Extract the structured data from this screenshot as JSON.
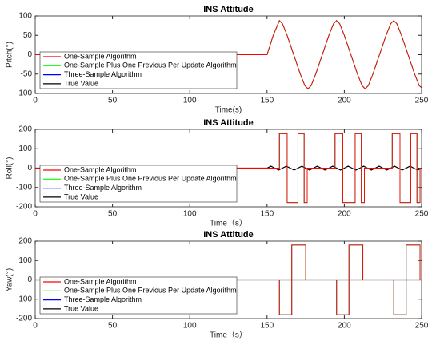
{
  "chart_data": [
    {
      "type": "line",
      "title": "INS Attitude",
      "xlabel": "Time(s)",
      "ylabel": "Pitch(°)",
      "xlim": [
        0,
        250
      ],
      "xticks": [
        0,
        50,
        100,
        150,
        200,
        250
      ],
      "ylim": [
        -100,
        100
      ],
      "yticks": [
        -100,
        -50,
        0,
        50,
        100
      ],
      "legend": "lower left",
      "x": [
        0,
        150,
        154,
        158,
        160,
        163,
        167.25,
        171.5,
        174.5,
        176.5,
        178.5,
        181.5,
        185.75,
        190,
        193,
        195,
        197,
        200,
        204.25,
        208.5,
        211.5,
        213.5,
        215.5,
        218.5,
        222.75,
        227,
        230,
        232,
        234,
        237,
        241.25,
        245.5,
        248.5,
        250
      ],
      "series": [
        {
          "name": "One-Sample Algorithm",
          "color": "#ff0000",
          "values": [
            0,
            0,
            50,
            88,
            80,
            50,
            0,
            -50,
            -80,
            -88,
            -80,
            -50,
            0,
            50,
            80,
            88,
            80,
            50,
            0,
            -50,
            -80,
            -88,
            -80,
            -50,
            0,
            50,
            80,
            88,
            80,
            50,
            0,
            -50,
            -80,
            -85
          ]
        },
        {
          "name": "One-Sample Plus One Previous Per Update Algorithm",
          "color": "#00ff00",
          "values": [
            0,
            0,
            50,
            88,
            80,
            50,
            0,
            -50,
            -80,
            -88,
            -80,
            -50,
            0,
            50,
            80,
            88,
            80,
            50,
            0,
            -50,
            -80,
            -88,
            -80,
            -50,
            0,
            50,
            80,
            88,
            80,
            50,
            0,
            -50,
            -80,
            -85
          ]
        },
        {
          "name": "Three-Sample Algorithm",
          "color": "#0000ff",
          "values": [
            0,
            0,
            50,
            88,
            80,
            50,
            0,
            -50,
            -80,
            -88,
            -80,
            -50,
            0,
            50,
            80,
            88,
            80,
            50,
            0,
            -50,
            -80,
            -88,
            -80,
            -50,
            0,
            50,
            80,
            88,
            80,
            50,
            0,
            -50,
            -80,
            -85
          ]
        },
        {
          "name": "True Value",
          "color": "#000000",
          "values": [
            0,
            0,
            50,
            88,
            80,
            50,
            0,
            -50,
            -80,
            -88,
            -80,
            -50,
            0,
            50,
            80,
            88,
            80,
            50,
            0,
            -50,
            -80,
            -88,
            -80,
            -50,
            0,
            50,
            80,
            88,
            80,
            50,
            0,
            -50,
            -80,
            -85
          ]
        }
      ]
    },
    {
      "type": "line",
      "title": "INS Attitude",
      "xlabel": "Time（s）",
      "ylabel": "Roll(°)",
      "xlim": [
        0,
        250
      ],
      "xticks": [
        0,
        50,
        100,
        150,
        200,
        250
      ],
      "ylim": [
        -200,
        200
      ],
      "yticks": [
        -200,
        -100,
        0,
        100,
        200
      ],
      "legend": "lower left",
      "x": [
        0,
        158,
        158,
        163,
        163,
        170,
        170,
        174,
        174,
        176,
        176,
        194,
        194,
        199,
        199,
        207,
        207,
        211,
        211,
        213,
        213,
        231,
        231,
        236,
        236,
        243,
        243,
        247,
        247,
        249,
        249,
        250
      ],
      "series": [
        {
          "name": "One-Sample Algorithm",
          "color": "#ff0000",
          "values": [
            0,
            0,
            178,
            178,
            -178,
            -178,
            178,
            178,
            -178,
            -178,
            0,
            0,
            178,
            178,
            -178,
            -178,
            178,
            178,
            -178,
            -178,
            0,
            0,
            178,
            178,
            -178,
            -178,
            178,
            178,
            -178,
            -178,
            0,
            0
          ]
        },
        {
          "name": "One-Sample Plus One Previous Per Update Algorithm",
          "color": "#00ff00",
          "values": [
            0,
            0,
            178,
            178,
            -178,
            -178,
            178,
            178,
            -178,
            -178,
            0,
            0,
            178,
            178,
            -178,
            -178,
            178,
            178,
            -178,
            -178,
            0,
            0,
            178,
            178,
            -178,
            -178,
            178,
            178,
            -178,
            -178,
            0,
            0
          ]
        },
        {
          "name": "Three-Sample Algorithm",
          "color": "#0000ff",
          "values": [
            0,
            0,
            178,
            178,
            -178,
            -178,
            178,
            178,
            -178,
            -178,
            0,
            0,
            178,
            178,
            -178,
            -178,
            178,
            178,
            -178,
            -178,
            0,
            0,
            178,
            178,
            -178,
            -178,
            178,
            178,
            -178,
            -178,
            0,
            0
          ]
        },
        {
          "name": "True Value",
          "color": "#000000",
          "x": [
            0,
            150,
            152.5,
            155,
            157.5,
            160,
            162.5,
            165,
            167.5,
            170,
            172.5,
            175,
            177.5,
            180,
            182.5,
            185,
            187.5,
            190,
            192.5,
            195,
            197.5,
            200,
            202.5,
            205,
            207.5,
            210,
            212.5,
            215,
            217.5,
            220,
            222.5,
            225,
            227.5,
            230,
            232.5,
            235,
            237.5,
            240,
            242.5,
            245,
            247.5,
            250
          ],
          "values": [
            0,
            0,
            10,
            0,
            -10,
            0,
            10,
            0,
            -10,
            0,
            10,
            0,
            -10,
            0,
            10,
            0,
            -10,
            0,
            10,
            0,
            -10,
            0,
            10,
            0,
            -10,
            0,
            10,
            0,
            -10,
            0,
            10,
            0,
            -10,
            0,
            10,
            0,
            -10,
            0,
            10,
            0,
            -10,
            0
          ]
        }
      ]
    },
    {
      "type": "line",
      "title": "INS Attitude",
      "xlabel": "Time（s）",
      "ylabel": "Yaw(°)",
      "xlim": [
        0,
        250
      ],
      "xticks": [
        0,
        50,
        100,
        150,
        200,
        250
      ],
      "ylim": [
        -200,
        200
      ],
      "yticks": [
        -200,
        -100,
        0,
        100,
        200
      ],
      "legend": "lower left",
      "x": [
        0,
        158,
        158,
        166,
        166,
        175,
        175,
        195,
        195,
        203,
        203,
        212,
        212,
        232,
        232,
        240,
        240,
        249,
        249,
        250
      ],
      "series": [
        {
          "name": "One-Sample Algorithm",
          "color": "#ff0000",
          "values": [
            0,
            0,
            -180,
            -180,
            180,
            180,
            0,
            0,
            -180,
            -180,
            180,
            180,
            0,
            0,
            -180,
            -180,
            180,
            180,
            0,
            0
          ]
        },
        {
          "name": "One-Sample Plus One Previous Per Update Algorithm",
          "color": "#00ff00",
          "values": [
            0,
            0,
            -180,
            -180,
            180,
            180,
            0,
            0,
            -180,
            -180,
            180,
            180,
            0,
            0,
            -180,
            -180,
            180,
            180,
            0,
            0
          ]
        },
        {
          "name": "Three-Sample Algorithm",
          "color": "#0000ff",
          "values": [
            0,
            0,
            -180,
            -180,
            180,
            180,
            0,
            0,
            -180,
            -180,
            180,
            180,
            0,
            0,
            -180,
            -180,
            180,
            180,
            0,
            0
          ]
        },
        {
          "name": "True Value",
          "color": "#000000",
          "x": [
            0,
            250
          ],
          "values": [
            0,
            0
          ]
        }
      ]
    }
  ]
}
